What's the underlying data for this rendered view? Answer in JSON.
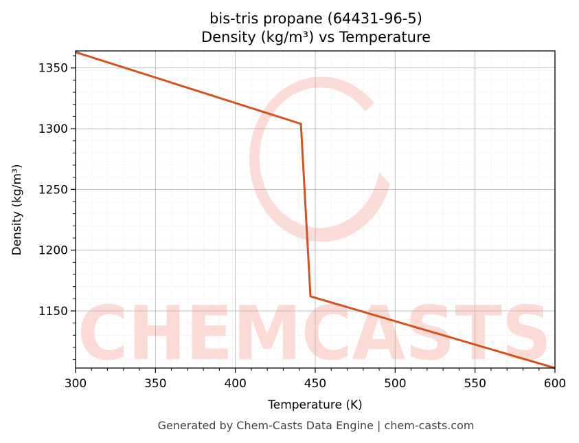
{
  "chart_data": {
    "type": "line",
    "title": "bis-tris propane (64431-96-5)",
    "subtitle": "Density (kg/m³) vs Temperature",
    "xlabel": "Temperature (K)",
    "ylabel": "Density (kg/m³)",
    "xlim": [
      300,
      600
    ],
    "ylim": [
      1103,
      1364
    ],
    "xticks": [
      300,
      350,
      400,
      450,
      500,
      550,
      600
    ],
    "yticks": [
      1150,
      1200,
      1250,
      1300,
      1350
    ],
    "grid": true,
    "series": [
      {
        "color": "#d4521f",
        "x": [
          300,
          441,
          447,
          600
        ],
        "y": [
          1363,
          1304,
          1162,
          1103
        ]
      }
    ]
  },
  "watermark": {
    "text": "CHEMCASTS",
    "color": "#fbd0c8"
  },
  "footer": "Generated by Chem-Casts Data Engine | chem-casts.com"
}
